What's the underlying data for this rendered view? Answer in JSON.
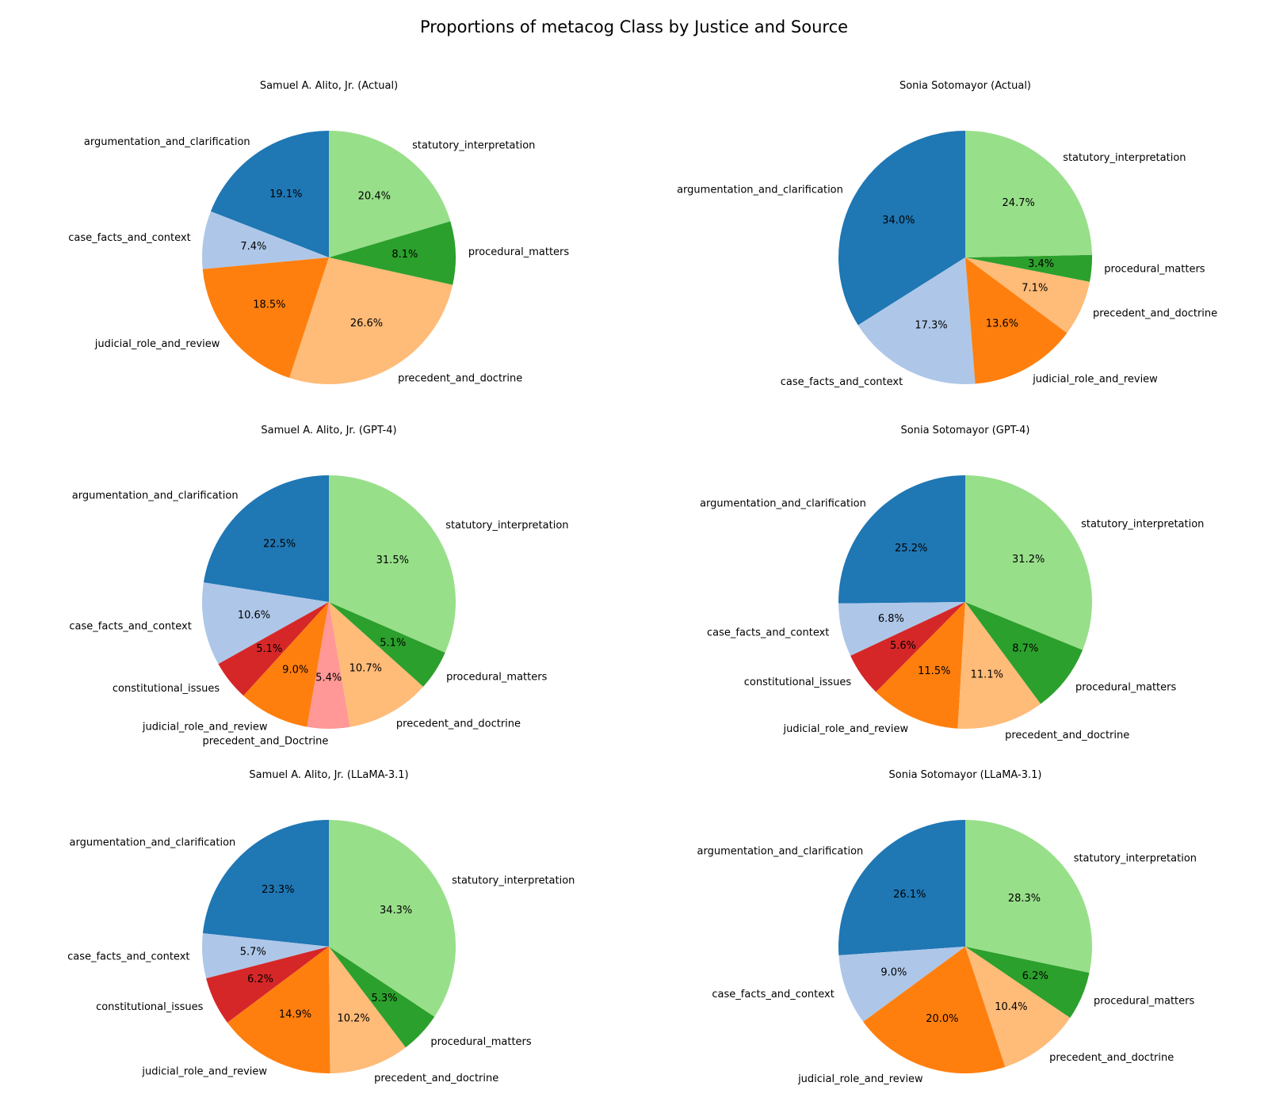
{
  "figure": {
    "title": "Proportions of metacog Class by Justice and Source"
  },
  "colors": {
    "argumentation_and_clarification": "#1f77b4",
    "case_facts_and_context": "#aec7e8",
    "constitutional_issues": "#d62728",
    "judicial_role_and_review": "#ff7f0e",
    "precedent_and_Doctrine": "#ff9896",
    "precedent_and_doctrine": "#ffbb78",
    "procedural_matters": "#2ca02c",
    "statutory_interpretation": "#98df8a"
  },
  "chart_data": [
    {
      "type": "pie",
      "title": "Samuel A. Alito, Jr. (Actual)",
      "labels": [
        "argumentation_and_clarification",
        "case_facts_and_context",
        "judicial_role_and_review",
        "precedent_and_doctrine",
        "procedural_matters",
        "statutory_interpretation"
      ],
      "values": [
        19.1,
        7.4,
        18.5,
        26.6,
        8.1,
        20.4
      ],
      "value_labels": [
        "19.1%",
        "7.4%",
        "18.5%",
        "26.6%",
        "8.1%",
        "20.4%"
      ],
      "start_angle": 90,
      "direction": "counterclockwise"
    },
    {
      "type": "pie",
      "title": "Sonia Sotomayor (Actual)",
      "labels": [
        "argumentation_and_clarification",
        "case_facts_and_context",
        "judicial_role_and_review",
        "precedent_and_doctrine",
        "procedural_matters",
        "statutory_interpretation"
      ],
      "values": [
        34.0,
        17.3,
        13.6,
        7.1,
        3.4,
        24.7
      ],
      "value_labels": [
        "34.0%",
        "17.3%",
        "13.6%",
        "7.1%",
        "3.4%",
        "24.7%"
      ],
      "start_angle": 90,
      "direction": "counterclockwise"
    },
    {
      "type": "pie",
      "title": "Samuel A. Alito, Jr. (GPT-4)",
      "labels": [
        "argumentation_and_clarification",
        "case_facts_and_context",
        "constitutional_issues",
        "judicial_role_and_review",
        "precedent_and_Doctrine",
        "precedent_and_doctrine",
        "procedural_matters",
        "statutory_interpretation"
      ],
      "values": [
        22.5,
        10.6,
        5.1,
        9.0,
        5.4,
        10.7,
        5.1,
        31.5
      ],
      "value_labels": [
        "22.5%",
        "10.6%",
        "5.1%",
        "9.0%",
        "5.4%",
        "10.7%",
        "5.1%",
        "31.5%"
      ],
      "start_angle": 90,
      "direction": "counterclockwise"
    },
    {
      "type": "pie",
      "title": "Sonia Sotomayor (GPT-4)",
      "labels": [
        "argumentation_and_clarification",
        "case_facts_and_context",
        "constitutional_issues",
        "judicial_role_and_review",
        "precedent_and_doctrine",
        "procedural_matters",
        "statutory_interpretation"
      ],
      "values": [
        25.2,
        6.8,
        5.6,
        11.5,
        11.1,
        8.7,
        31.2
      ],
      "value_labels": [
        "25.2%",
        "6.8%",
        "5.6%",
        "11.5%",
        "11.1%",
        "8.7%",
        "31.2%"
      ],
      "start_angle": 90,
      "direction": "counterclockwise"
    },
    {
      "type": "pie",
      "title": "Samuel A. Alito, Jr. (LLaMA-3.1)",
      "labels": [
        "argumentation_and_clarification",
        "case_facts_and_context",
        "constitutional_issues",
        "judicial_role_and_review",
        "precedent_and_doctrine",
        "procedural_matters",
        "statutory_interpretation"
      ],
      "values": [
        23.3,
        5.7,
        6.2,
        14.9,
        10.2,
        5.3,
        34.3
      ],
      "value_labels": [
        "23.3%",
        "5.7%",
        "6.2%",
        "14.9%",
        "10.2%",
        "5.3%",
        "34.3%"
      ],
      "start_angle": 90,
      "direction": "counterclockwise"
    },
    {
      "type": "pie",
      "title": "Sonia Sotomayor (LLaMA-3.1)",
      "labels": [
        "argumentation_and_clarification",
        "case_facts_and_context",
        "judicial_role_and_review",
        "precedent_and_doctrine",
        "procedural_matters",
        "statutory_interpretation"
      ],
      "values": [
        26.1,
        9.0,
        20.0,
        10.4,
        6.2,
        28.3
      ],
      "value_labels": [
        "26.1%",
        "9.0%",
        "20.0%",
        "10.4%",
        "6.2%",
        "28.3%"
      ],
      "start_angle": 90,
      "direction": "counterclockwise"
    }
  ]
}
